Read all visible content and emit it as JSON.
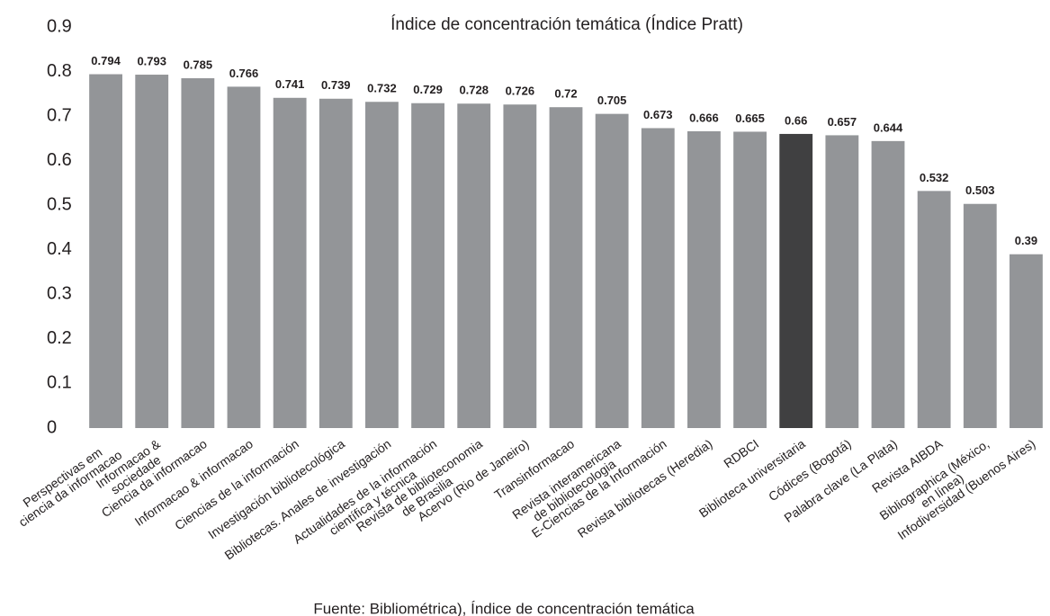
{
  "chart_data": {
    "type": "bar",
    "title": "Índice de concentración temática (Índice Pratt)",
    "source": "Fuente: Bibliométrica), Índice de concentración temática",
    "categories": [
      "Perspectivas em\nciencia da informacao",
      "Informacao &\nsociedade",
      "Ciencia da informacao",
      "Informacao & informacao",
      "Ciencias de la información",
      "Investigación bibliotecológica",
      "Bibliotecas. Anales de investigación",
      "Actualidades de la información\ncientífica y técnica",
      "Revista de biblioteconomia\nde Brasilia",
      "Acervo (Rio de Janeiro)",
      "Transinformacao",
      "Revista interamericana\nde bibliotecologia",
      "E-Ciencias de la Información",
      "Revista bibliotecas (Heredia)",
      "RDBCI",
      "Biblioteca universitaria",
      "Códices (Bogotá)",
      "Palabra clave (La Plata)",
      "Revista AIBDA",
      "Bibliographica (México,\nen línea)",
      "Infodiversidad (Buenos Aires)"
    ],
    "values": [
      0.794,
      0.793,
      0.785,
      0.766,
      0.741,
      0.739,
      0.732,
      0.729,
      0.728,
      0.726,
      0.72,
      0.705,
      0.673,
      0.666,
      0.665,
      0.66,
      0.657,
      0.644,
      0.532,
      0.503,
      0.39
    ],
    "colors": [
      "#939598",
      "#939598",
      "#939598",
      "#939598",
      "#939598",
      "#939598",
      "#939598",
      "#939598",
      "#939598",
      "#939598",
      "#939598",
      "#939598",
      "#939598",
      "#939598",
      "#939598",
      "#404041",
      "#939598",
      "#939598",
      "#939598",
      "#939598",
      "#939598"
    ],
    "ylim": [
      0,
      0.9
    ],
    "yticks": [
      0,
      0.1,
      0.2,
      0.3,
      0.4,
      0.5,
      0.6,
      0.7,
      0.8,
      0.9
    ],
    "grid": false
  }
}
